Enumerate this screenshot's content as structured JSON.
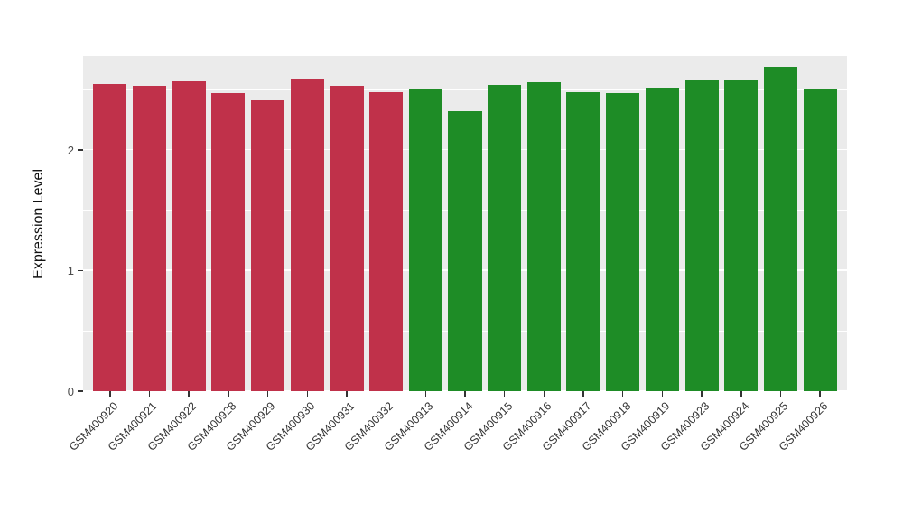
{
  "chart_data": {
    "type": "bar",
    "title": "",
    "xlabel": "",
    "ylabel": "Expression Level",
    "categories": [
      "GSM400920",
      "GSM400921",
      "GSM400922",
      "GSM400928",
      "GSM400929",
      "GSM400930",
      "GSM400931",
      "GSM400932",
      "GSM400913",
      "GSM400914",
      "GSM400915",
      "GSM400916",
      "GSM400917",
      "GSM400918",
      "GSM400919",
      "GSM400923",
      "GSM400924",
      "GSM400925",
      "GSM400926"
    ],
    "values": [
      2.55,
      2.53,
      2.57,
      2.47,
      2.41,
      2.59,
      2.53,
      2.48,
      2.5,
      2.32,
      2.54,
      2.56,
      2.48,
      2.47,
      2.52,
      2.58,
      2.58,
      2.69,
      2.5
    ],
    "bar_groups": [
      "group1",
      "group1",
      "group1",
      "group1",
      "group1",
      "group1",
      "group1",
      "group1",
      "group2",
      "group2",
      "group2",
      "group2",
      "group2",
      "group2",
      "group2",
      "group2",
      "group2",
      "group2",
      "group2"
    ],
    "group_colors": {
      "group1": "#C0314A",
      "group2": "#1E8C26"
    },
    "yticks": [
      0,
      1,
      2
    ],
    "minor_ticks": [
      0.5,
      1.5,
      2.5
    ],
    "ylim": [
      0,
      2.78
    ],
    "panel_bg": "#EBEBEB",
    "grid_color": "#FFFFFF",
    "grid": "on",
    "legend": "none"
  }
}
